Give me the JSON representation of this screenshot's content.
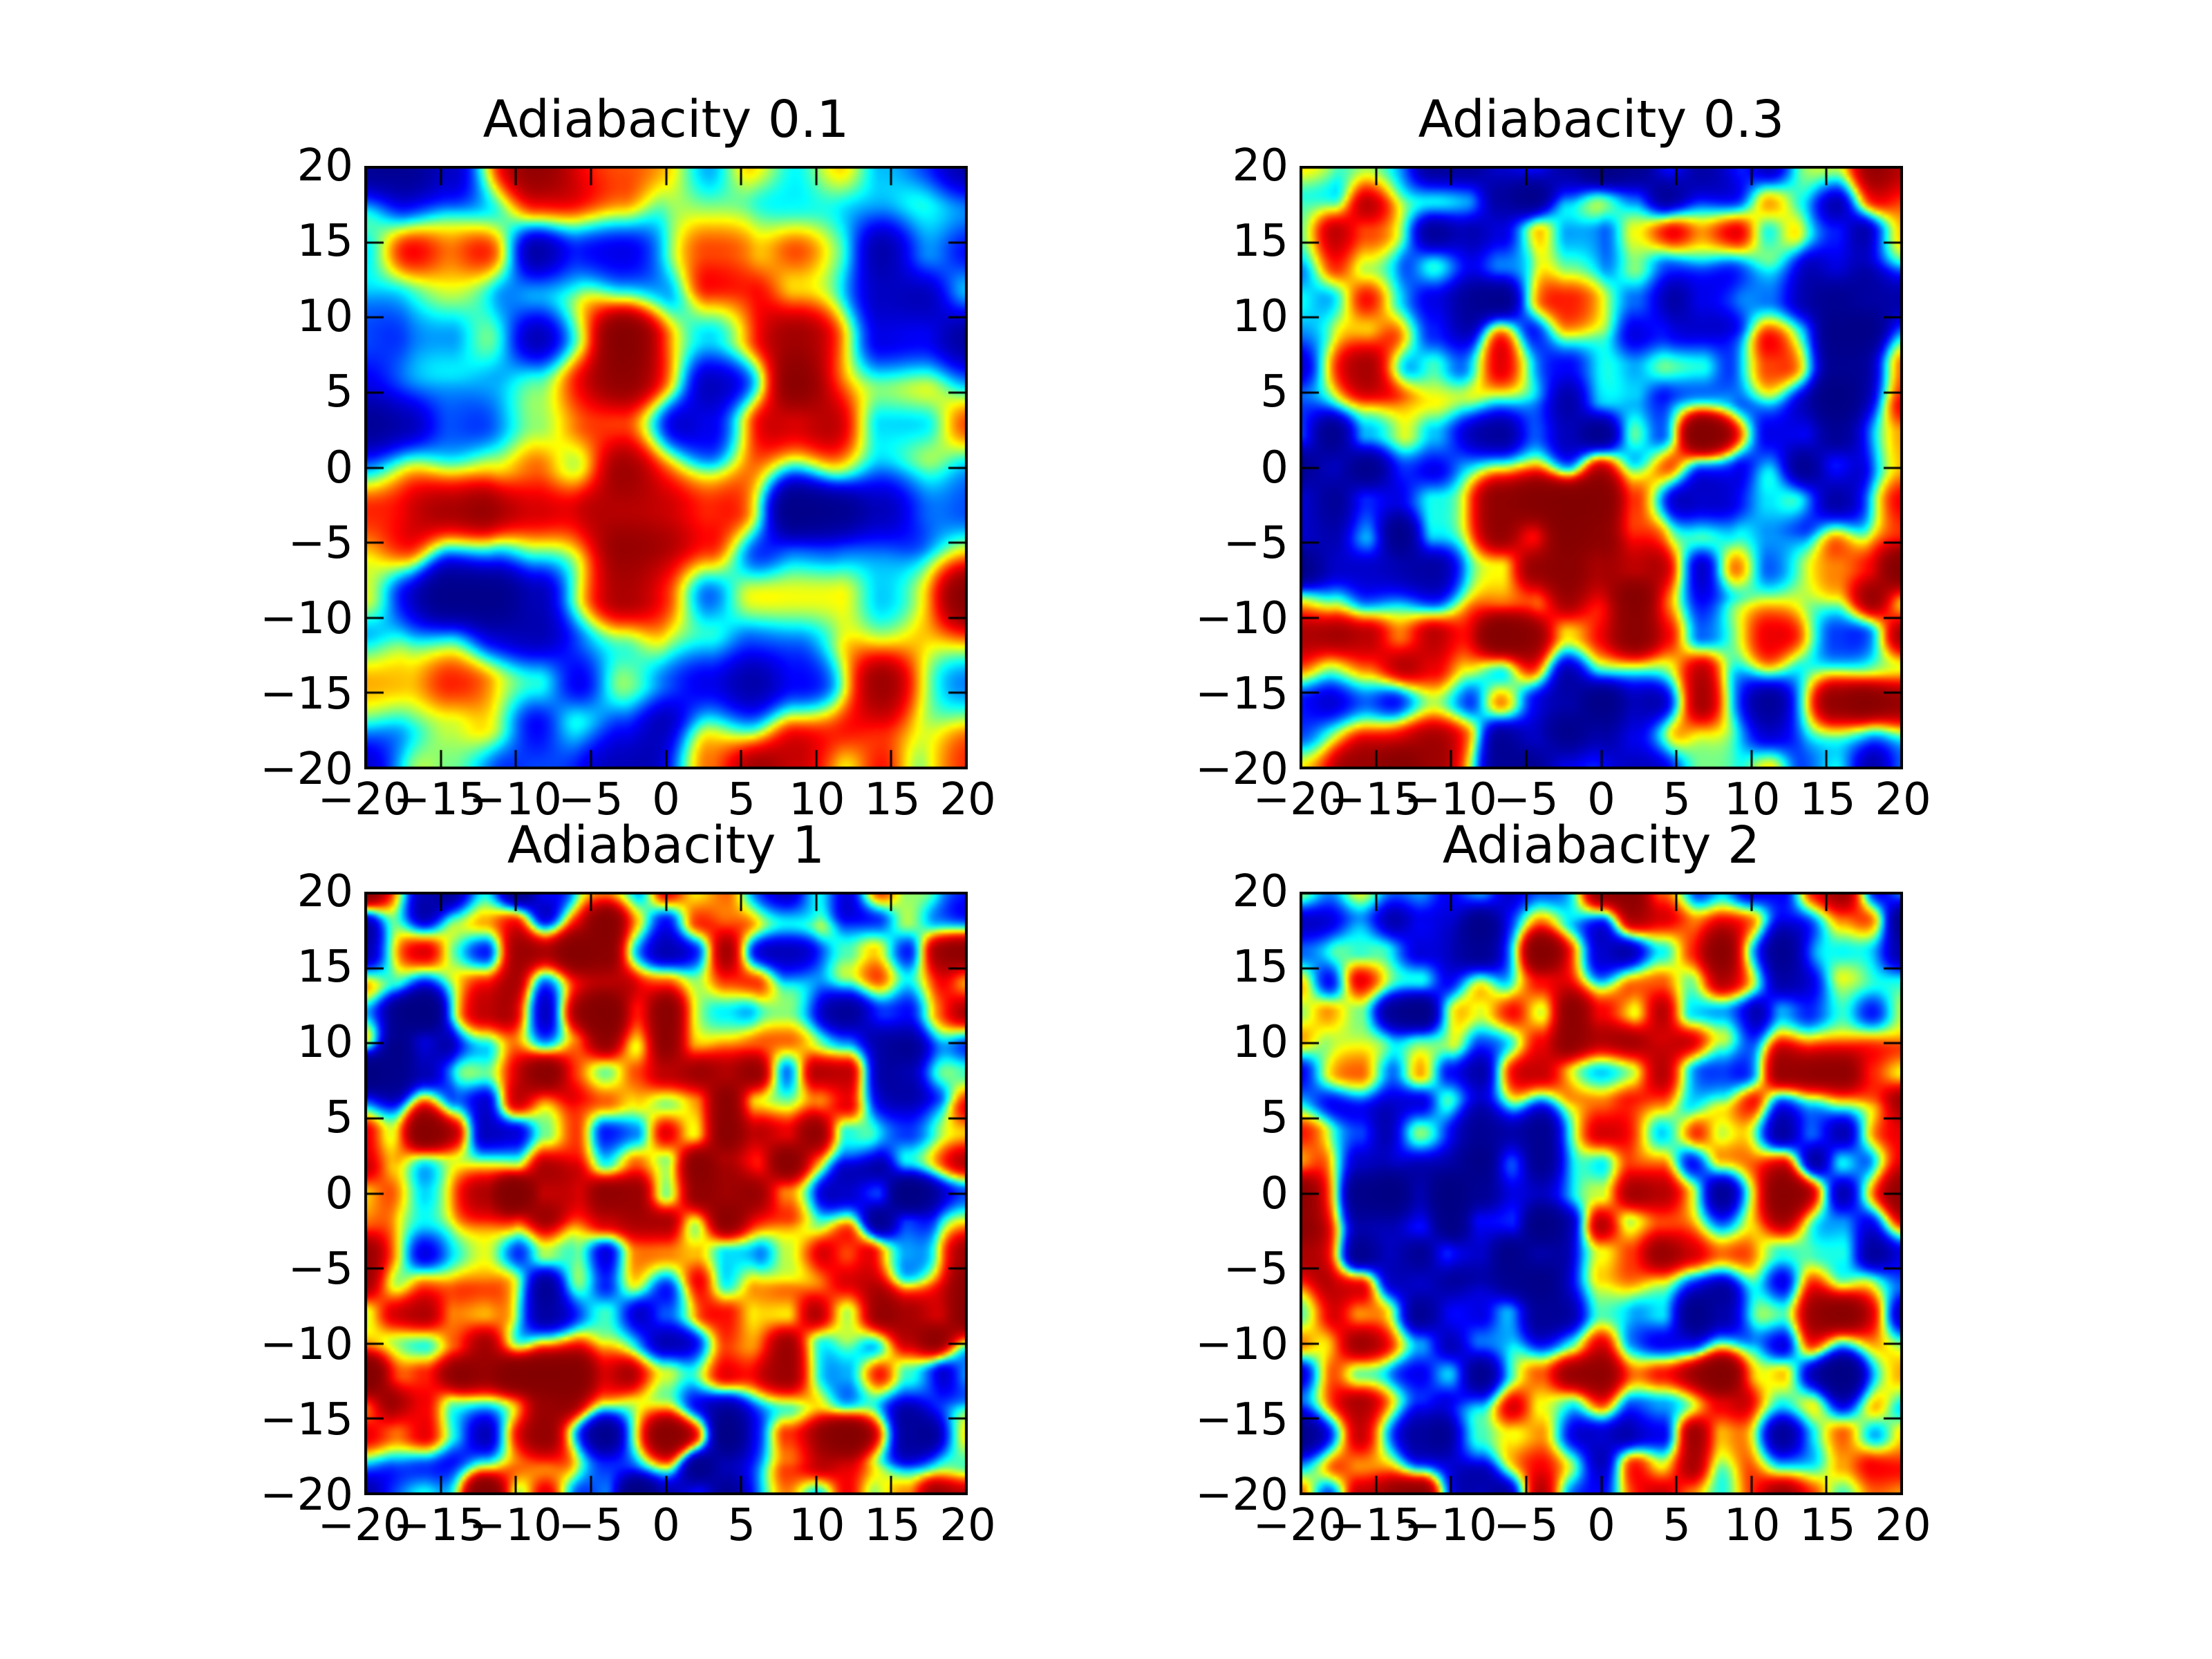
{
  "figure": {
    "background": "#ffffff",
    "rows": 2,
    "cols": 2
  },
  "chart_data": [
    {
      "type": "heatmap",
      "title": "Adiabacity 0.1",
      "xlabel": "",
      "ylabel": "",
      "x_range": [
        -20,
        20
      ],
      "y_range": [
        -20,
        20
      ],
      "x_tick_labels": [
        "−20",
        "−15",
        "−10",
        "−5",
        "0",
        "5",
        "10",
        "15",
        "20"
      ],
      "y_tick_labels": [
        "20",
        "15",
        "10",
        "5",
        "0",
        "−5",
        "−10",
        "−15",
        "−20"
      ],
      "colormap": "jet",
      "grid": false,
      "legend": false,
      "field": {
        "seed": 7,
        "cells": 7,
        "detail": 0.35,
        "gain": 1.55,
        "bias": 0.04
      }
    },
    {
      "type": "heatmap",
      "title": "Adiabacity 0.3",
      "xlabel": "",
      "ylabel": "",
      "x_range": [
        -20,
        20
      ],
      "y_range": [
        -20,
        20
      ],
      "x_tick_labels": [
        "−20",
        "−15",
        "−10",
        "−5",
        "0",
        "5",
        "10",
        "15",
        "20"
      ],
      "y_tick_labels": [
        "20",
        "15",
        "10",
        "5",
        "0",
        "−5",
        "−10",
        "−15",
        "−20"
      ],
      "colormap": "jet",
      "grid": false,
      "legend": false,
      "field": {
        "seed": 13,
        "cells": 9,
        "detail": 0.45,
        "gain": 1.75,
        "bias": 0.1
      }
    },
    {
      "type": "heatmap",
      "title": "Adiabacity 1",
      "xlabel": "",
      "ylabel": "",
      "x_range": [
        -20,
        20
      ],
      "y_range": [
        -20,
        20
      ],
      "x_tick_labels": [
        "−20",
        "−15",
        "−10",
        "−5",
        "0",
        "5",
        "10",
        "15",
        "20"
      ],
      "y_tick_labels": [
        "20",
        "15",
        "10",
        "5",
        "0",
        "−5",
        "−10",
        "−15",
        "−20"
      ],
      "colormap": "jet",
      "grid": false,
      "legend": false,
      "field": {
        "seed": 3,
        "cells": 10,
        "detail": 0.5,
        "gain": 1.75,
        "bias": 0.06
      }
    },
    {
      "type": "heatmap",
      "title": "Adiabacity 2",
      "xlabel": "",
      "ylabel": "",
      "x_range": [
        -20,
        20
      ],
      "y_range": [
        -20,
        20
      ],
      "x_tick_labels": [
        "−20",
        "−15",
        "−10",
        "−5",
        "0",
        "5",
        "10",
        "15",
        "20"
      ],
      "y_tick_labels": [
        "20",
        "15",
        "10",
        "5",
        "0",
        "−5",
        "−10",
        "−15",
        "−20"
      ],
      "colormap": "jet",
      "grid": false,
      "legend": false,
      "field": {
        "seed": 21,
        "cells": 10,
        "detail": 0.5,
        "gain": 1.65,
        "bias": -0.09
      }
    }
  ],
  "style": {
    "spine_color": "#000000",
    "tick_color": "#000000",
    "text_color": "#000000"
  }
}
